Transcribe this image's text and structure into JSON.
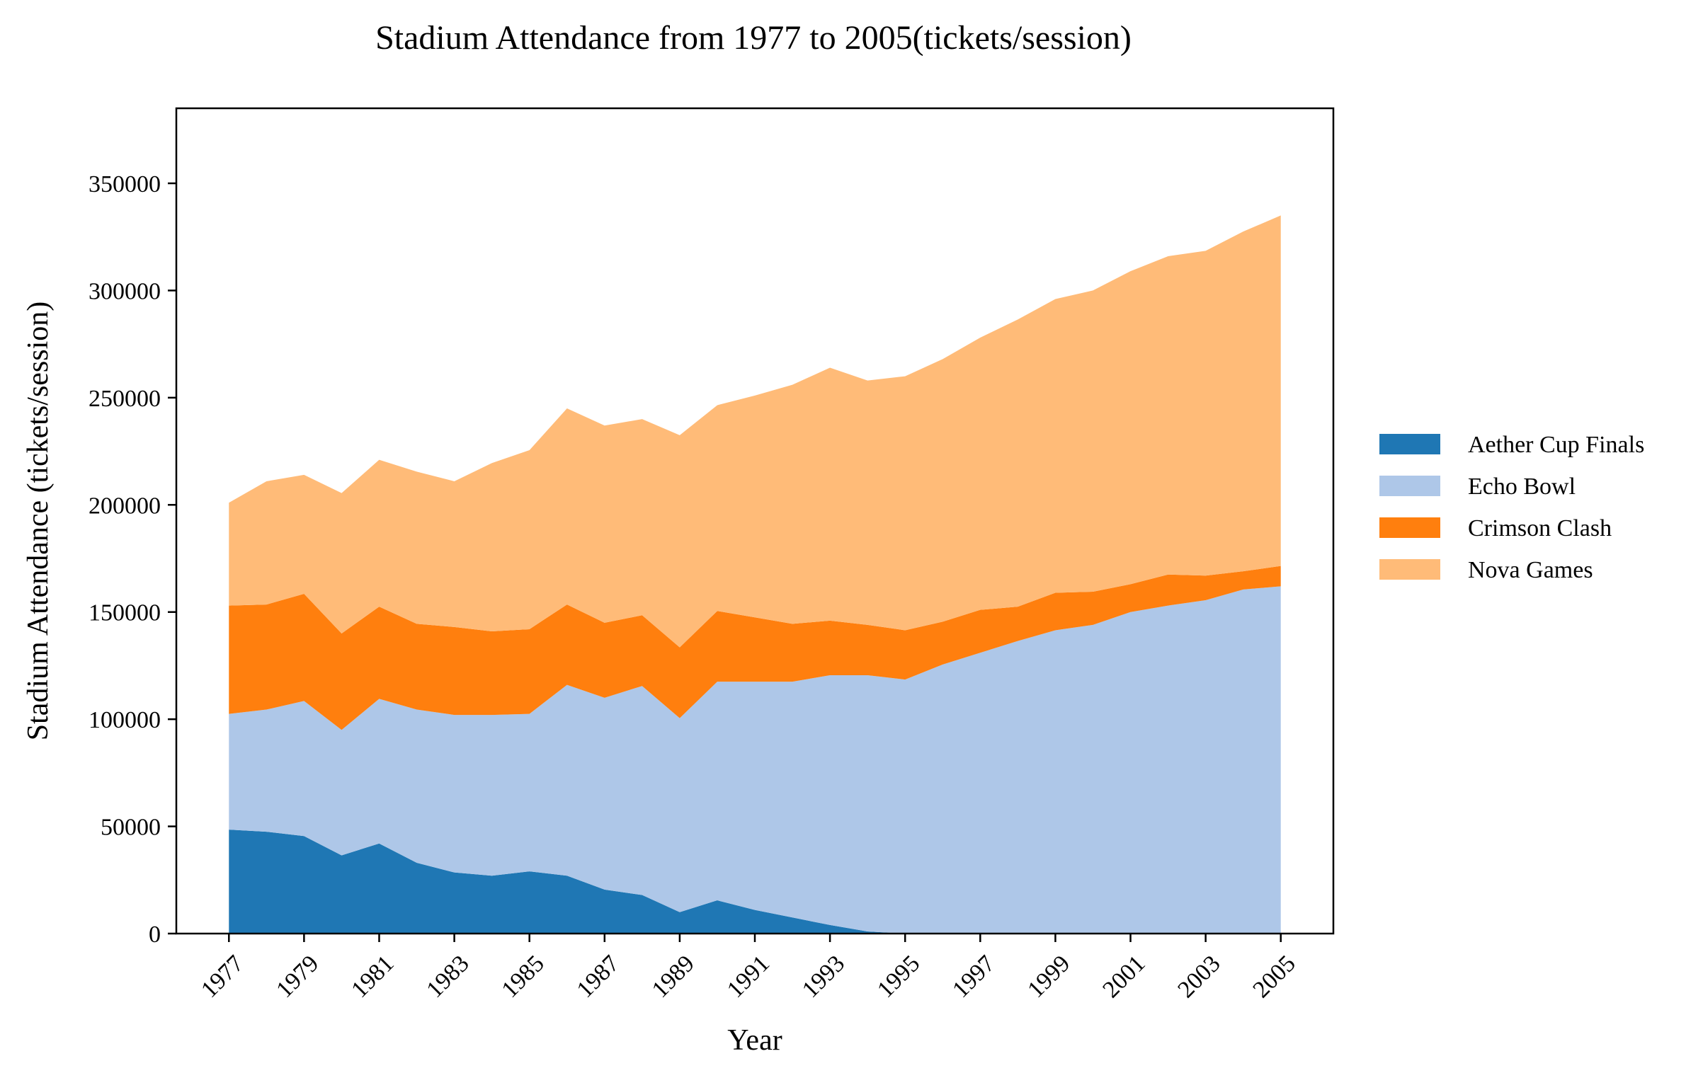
{
  "chart_data": {
    "type": "area",
    "stacked": true,
    "title": "Stadium Attendance from 1977 to 2005(tickets/session)",
    "xlabel": "Year",
    "ylabel": "Stadium Attendance (tickets/session)",
    "x": [
      1977,
      1978,
      1979,
      1980,
      1981,
      1982,
      1983,
      1984,
      1985,
      1986,
      1987,
      1988,
      1989,
      1990,
      1991,
      1992,
      1993,
      1994,
      1995,
      1996,
      1997,
      1998,
      1999,
      2000,
      2001,
      2002,
      2003,
      2004,
      2005
    ],
    "x_ticks": [
      "1977",
      "1979",
      "1981",
      "1983",
      "1985",
      "1987",
      "1989",
      "1991",
      "1993",
      "1995",
      "1997",
      "1999",
      "2001",
      "2003",
      "2005"
    ],
    "y_ticks": [
      "0",
      "50000",
      "100000",
      "150000",
      "200000",
      "250000",
      "300000",
      "350000"
    ],
    "xlim": [
      1975.6,
      2006.4
    ],
    "ylim": [
      0,
      385000
    ],
    "grid": false,
    "legend_position": "right",
    "series": [
      {
        "name": "Aether Cup Finals",
        "color": "#1f77b4",
        "values": [
          48500,
          47500,
          45500,
          36500,
          42000,
          33000,
          28500,
          27000,
          29000,
          27000,
          20500,
          18000,
          10000,
          15500,
          11000,
          7500,
          4000,
          1000,
          0,
          0,
          0,
          0,
          0,
          0,
          0,
          0,
          0,
          0,
          0
        ]
      },
      {
        "name": "Echo Bowl",
        "color": "#aec7e8",
        "values": [
          54000,
          57000,
          63000,
          58500,
          67500,
          71500,
          73500,
          75000,
          73500,
          89000,
          89500,
          97500,
          90500,
          102000,
          106500,
          110000,
          116500,
          119500,
          118500,
          125500,
          131000,
          136500,
          141500,
          144000,
          150000,
          153000,
          155500,
          160500,
          162000
        ]
      },
      {
        "name": "Crimson Clash",
        "color": "#ff7f0e",
        "values": [
          50500,
          49000,
          50000,
          45000,
          43000,
          40000,
          41000,
          39000,
          39500,
          37500,
          35000,
          33000,
          33000,
          33000,
          30000,
          27000,
          25500,
          23500,
          23000,
          20000,
          20000,
          16000,
          17500,
          15500,
          13000,
          14500,
          11500,
          8500,
          9500
        ]
      },
      {
        "name": "Nova Games",
        "color": "#ffbb78",
        "values": [
          48000,
          57500,
          55500,
          65500,
          68500,
          71000,
          68000,
          78500,
          83500,
          91500,
          92000,
          91500,
          99000,
          96000,
          103500,
          111500,
          118000,
          114000,
          118500,
          122500,
          127000,
          134000,
          137000,
          140500,
          146000,
          148500,
          151500,
          158500,
          163500
        ]
      }
    ]
  }
}
